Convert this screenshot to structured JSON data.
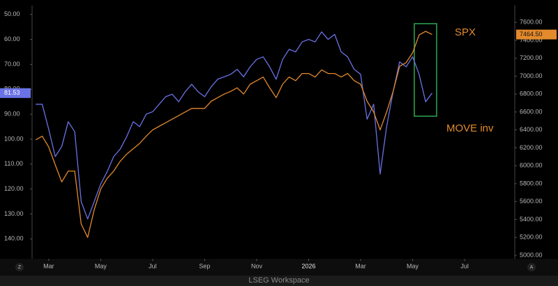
{
  "chart_data": {
    "type": "line",
    "x": [
      1.5,
      1.75,
      2,
      2.25,
      2.5,
      2.75,
      3,
      3.25,
      3.5,
      3.75,
      4,
      4.25,
      4.5,
      4.75,
      5,
      5.25,
      5.5,
      5.75,
      6,
      6.25,
      6.5,
      6.75,
      7,
      7.25,
      7.5,
      7.75,
      8,
      8.25,
      8.5,
      8.75,
      9,
      9.25,
      9.5,
      9.75,
      10,
      10.25,
      10.5,
      10.75,
      11,
      11.25,
      11.5,
      11.75,
      12,
      12.25,
      12.5,
      12.75,
      13,
      13.25,
      13.5,
      13.75,
      14,
      14.25,
      14.5,
      14.75,
      15,
      15.25,
      15.5,
      15.75,
      16,
      16.25,
      16.5,
      16.75
    ],
    "xlim": [
      1.36,
      19.93
    ],
    "xticks": [
      {
        "value": 2,
        "label": "Mar"
      },
      {
        "value": 4,
        "label": "May"
      },
      {
        "value": 6,
        "label": "Jul"
      },
      {
        "value": 8,
        "label": "Sep"
      },
      {
        "value": 10,
        "label": "Nov"
      },
      {
        "value": 12,
        "label": "2026"
      },
      {
        "value": 14,
        "label": "Mar"
      },
      {
        "value": 16,
        "label": "May"
      },
      {
        "value": 18,
        "label": "Jul"
      }
    ],
    "ylim": [
      47,
      148
    ],
    "y_inverted": true,
    "yticks": [
      {
        "value": 50,
        "label": "50.00"
      },
      {
        "value": 60,
        "label": "60.00"
      },
      {
        "value": 70,
        "label": "70.00"
      },
      {
        "value": 80,
        "label": "80.00"
      },
      {
        "value": 90,
        "label": "90.00"
      },
      {
        "value": 100,
        "label": "100.00"
      },
      {
        "value": 110,
        "label": "110.00"
      },
      {
        "value": 120,
        "label": "120.00"
      },
      {
        "value": 130,
        "label": "130.00"
      },
      {
        "value": 140,
        "label": "140.00"
      }
    ],
    "y2lim": [
      4961,
      7772
    ],
    "y2ticks": [
      {
        "value": 5000,
        "label": "5000.00"
      },
      {
        "value": 5200,
        "label": "5200.00"
      },
      {
        "value": 5400,
        "label": "5400.00"
      },
      {
        "value": 5600,
        "label": "5600.00"
      },
      {
        "value": 5800,
        "label": "5800.00"
      },
      {
        "value": 6000,
        "label": "6000.00"
      },
      {
        "value": 6200,
        "label": "6200.00"
      },
      {
        "value": 6400,
        "label": "6400.00"
      },
      {
        "value": 6600,
        "label": "6600.00"
      },
      {
        "value": 6800,
        "label": "6800.00"
      },
      {
        "value": 7000,
        "label": "7000.00"
      },
      {
        "value": 7200,
        "label": "7200.00"
      },
      {
        "value": 7400,
        "label": "7400.00"
      },
      {
        "value": 7600,
        "label": "7600.00"
      }
    ],
    "grid": false,
    "series": [
      {
        "name": "MOVE inv",
        "color": "#6a72e6",
        "last_value_label": "81.53",
        "values": [
          86,
          86,
          96,
          107,
          103,
          93,
          97,
          125,
          132,
          125,
          118,
          113,
          107,
          104,
          99,
          93,
          95,
          90,
          89,
          86,
          83,
          82,
          85,
          81,
          78,
          81,
          83,
          79,
          76,
          75,
          74,
          72,
          75,
          71,
          68,
          67,
          71,
          76,
          68,
          64,
          65,
          61,
          60,
          61,
          57,
          60,
          58,
          65,
          67,
          72,
          74,
          92,
          86,
          114,
          95,
          81,
          69,
          71,
          67,
          74,
          85,
          81.53
        ]
      },
      {
        "name": "SPX",
        "color": "#e38a2c",
        "axis": "y2",
        "last_value_label": "7464.50",
        "values": [
          6290,
          6330,
          6210,
          6010,
          5820,
          5940,
          5940,
          5350,
          5200,
          5510,
          5740,
          5860,
          5940,
          6050,
          6130,
          6190,
          6250,
          6330,
          6400,
          6440,
          6480,
          6520,
          6560,
          6600,
          6640,
          6640,
          6640,
          6720,
          6760,
          6800,
          6830,
          6870,
          6800,
          6910,
          6950,
          6990,
          6870,
          6760,
          6910,
          6990,
          6950,
          7030,
          7030,
          6990,
          7070,
          7030,
          7030,
          6990,
          7030,
          6950,
          6910,
          6720,
          6600,
          6400,
          6600,
          6830,
          7110,
          7150,
          7260,
          7460,
          7500,
          7464.5
        ]
      }
    ]
  },
  "scale_buttons": [
    "Z",
    "A"
  ],
  "footer": "LSEG Workspace"
}
